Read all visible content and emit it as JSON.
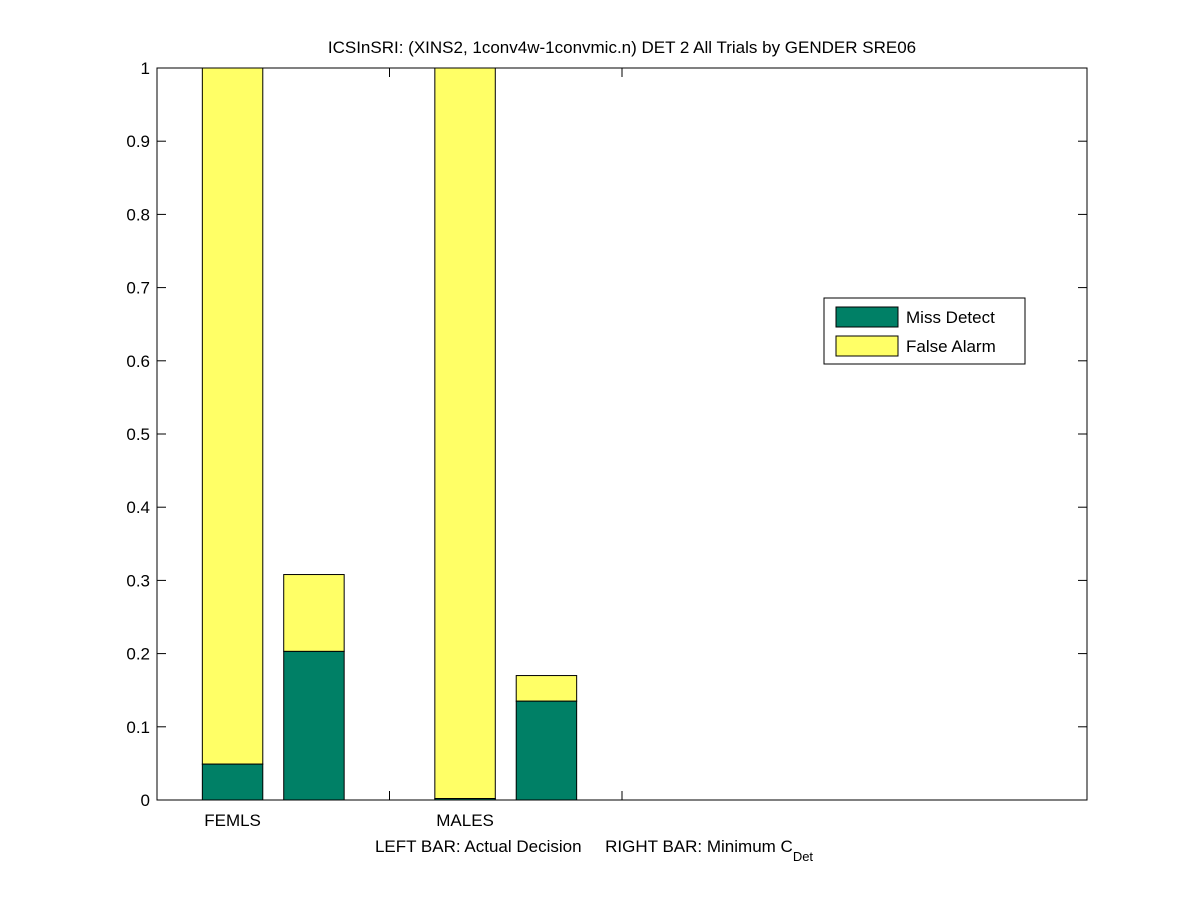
{
  "chart_data": {
    "type": "bar",
    "stacked": true,
    "title": "ICSInSRI: (XINS2, 1conv4w-1convmic.n) DET 2 All Trials by GENDER SRE06",
    "xlabel": {
      "main": "LEFT BAR: Actual Decision     RIGHT BAR: Minimum C",
      "subscript": "Det"
    },
    "ylabel": "",
    "ylim": [
      0,
      1
    ],
    "yticks": [
      "0",
      "0.1",
      "0.2",
      "0.3",
      "0.4",
      "0.5",
      "0.6",
      "0.7",
      "0.8",
      "0.9",
      "1"
    ],
    "groups": [
      "FEMLS",
      "MALES"
    ],
    "bars": [
      {
        "group": "FEMLS",
        "side": "left",
        "miss": 0.049,
        "false_alarm": 0.951
      },
      {
        "group": "FEMLS",
        "side": "right",
        "miss": 0.203,
        "false_alarm": 0.105
      },
      {
        "group": "MALES",
        "side": "left",
        "miss": 0.002,
        "false_alarm": 0.998
      },
      {
        "group": "MALES",
        "side": "right",
        "miss": 0.135,
        "false_alarm": 0.035
      }
    ],
    "series": [
      {
        "name": "Miss Detect",
        "color": "#008066"
      },
      {
        "name": "False Alarm",
        "color": "#ffff66"
      }
    ],
    "legend_position": "right",
    "grid": false
  }
}
